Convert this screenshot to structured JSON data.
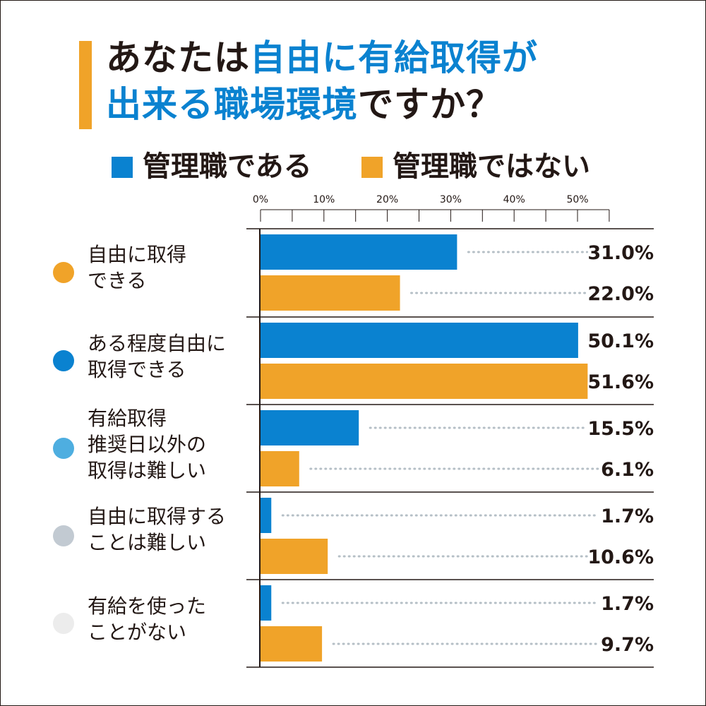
{
  "colors": {
    "manager": "#0a82d0",
    "non_manager": "#f0a329",
    "title_accent": "#0a82d0",
    "text": "#231815",
    "leader_dots": "#b5bfc6"
  },
  "title": {
    "line1_a": "あなたは",
    "line1_b": "自由に有給取得が",
    "line2_a": "出来る職場環境",
    "line2_b": "ですか？"
  },
  "legend": {
    "manager": "管理職である",
    "non_manager": "管理職ではない"
  },
  "categories": [
    {
      "line1": "自由に取得",
      "line2": "できる",
      "line3": "",
      "dot_color": "#f0a329"
    },
    {
      "line1": "ある程度自由に",
      "line2": "取得できる",
      "line3": "",
      "dot_color": "#0a82d0"
    },
    {
      "line1": "有給取得",
      "line2": "推奨日以外の",
      "line3": "取得は難しい",
      "dot_color": "#4eaee0"
    },
    {
      "line1": "自由に取得する",
      "line2": "ことは難しい",
      "line3": "",
      "dot_color": "#c2cad2"
    },
    {
      "line1": "有給を使った",
      "line2": "ことがない",
      "line3": "",
      "dot_color": "#ececec"
    }
  ],
  "chart_data": {
    "type": "bar",
    "orientation": "horizontal",
    "title": "あなたは自由に有給取得が出来る職場環境ですか？",
    "categories": [
      "自由に取得できる",
      "ある程度自由に取得できる",
      "有給取得推奨日以外の取得は難しい",
      "自由に取得することは難しい",
      "有給を使ったことがない"
    ],
    "series": [
      {
        "name": "管理職である",
        "values": [
          31.0,
          50.1,
          15.5,
          1.7,
          1.7
        ],
        "labels": [
          "31.0%",
          "50.1%",
          "15.5%",
          "1.7%",
          "1.7%"
        ]
      },
      {
        "name": "管理職ではない",
        "values": [
          22.0,
          51.6,
          6.1,
          10.6,
          9.7
        ],
        "labels": [
          "22.0%",
          "51.6%",
          "6.1%",
          "10.6%",
          "9.7%"
        ]
      }
    ],
    "xlim": [
      0,
      55
    ],
    "xticks": [
      0,
      10,
      20,
      30,
      40,
      50
    ],
    "xtick_labels": [
      "0%",
      "10%",
      "20%",
      "30%",
      "40%",
      "50%"
    ],
    "minor_step": 5,
    "legend": "top"
  }
}
